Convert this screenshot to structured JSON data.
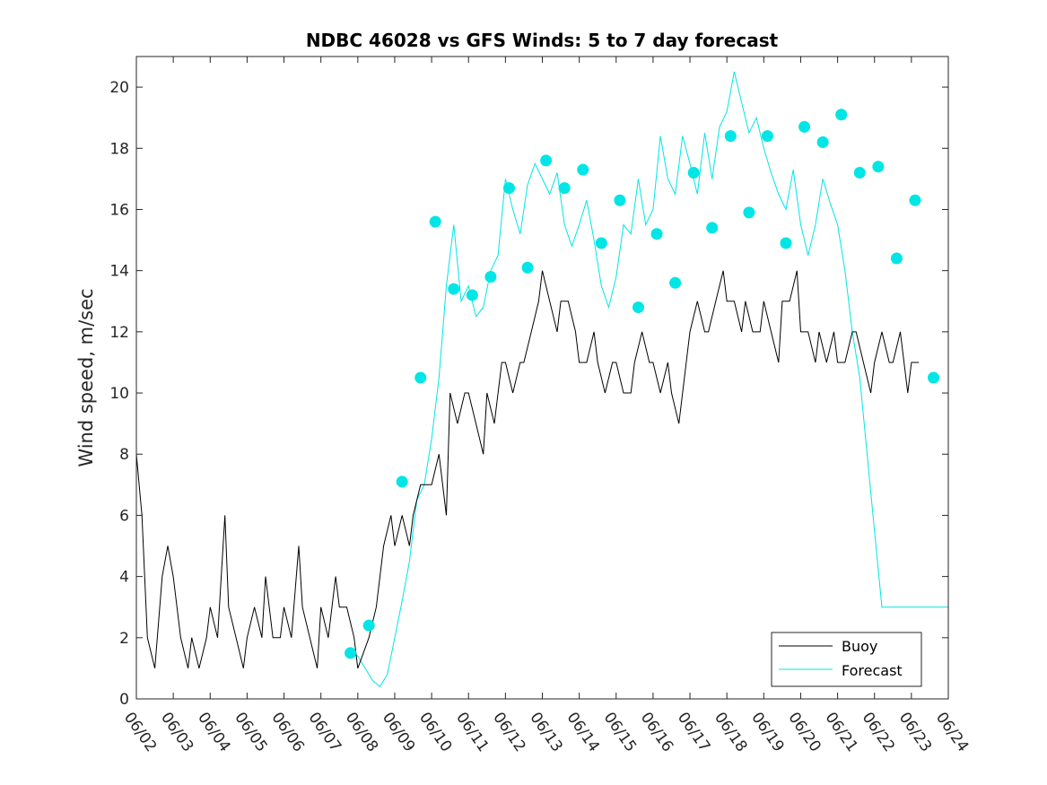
{
  "chart_data": {
    "type": "line",
    "title": "NDBC 46028 vs GFS Winds: 5 to 7 day forecast",
    "xlabel": "",
    "ylabel": "Wind speed, m/sec",
    "x_start": "06/02",
    "x_end": "06/24",
    "xlim_days": [
      0,
      22
    ],
    "ylim": [
      0,
      21
    ],
    "yticks": [
      "0",
      "2",
      "4",
      "6",
      "8",
      "10",
      "12",
      "14",
      "16",
      "18",
      "20"
    ],
    "xtick_labels": [
      "06/02",
      "06/03",
      "06/04",
      "06/05",
      "06/06",
      "06/07",
      "06/08",
      "06/09",
      "06/10",
      "06/11",
      "06/12",
      "06/13",
      "06/14",
      "06/15",
      "06/16",
      "06/17",
      "06/18",
      "06/19",
      "06/20",
      "06/21",
      "06/22",
      "06/23",
      "06/24"
    ],
    "grid": false,
    "legend_position": "bottom-right",
    "colors": {
      "buoy": "#000000",
      "forecast": "#00e5e5",
      "axes": "#262626"
    },
    "legend": [
      {
        "label": "Buoy",
        "color": "#000000"
      },
      {
        "label": "Forecast",
        "color": "#00e5e5"
      }
    ],
    "series": [
      {
        "name": "Buoy",
        "x": [
          0.0,
          0.15,
          0.3,
          0.5,
          0.7,
          0.85,
          1.0,
          1.2,
          1.4,
          1.5,
          1.7,
          1.9,
          2.0,
          2.2,
          2.4,
          2.5,
          2.7,
          2.9,
          3.0,
          3.2,
          3.4,
          3.5,
          3.7,
          3.9,
          4.0,
          4.2,
          4.4,
          4.5,
          4.7,
          4.9,
          5.0,
          5.2,
          5.4,
          5.5,
          5.7,
          5.9,
          6.0,
          6.3,
          6.5,
          6.7,
          6.9,
          7.0,
          7.2,
          7.4,
          7.5,
          7.7,
          7.9,
          8.0,
          8.2,
          8.4,
          8.5,
          8.7,
          8.9,
          9.0,
          9.2,
          9.4,
          9.5,
          9.7,
          9.9,
          10.0,
          10.2,
          10.4,
          10.5,
          10.7,
          10.9,
          11.0,
          11.2,
          11.4,
          11.5,
          11.7,
          11.9,
          12.0,
          12.2,
          12.4,
          12.5,
          12.7,
          12.9,
          13.0,
          13.2,
          13.4,
          13.5,
          13.7,
          13.9,
          14.0,
          14.2,
          14.4,
          14.5,
          14.7,
          14.9,
          15.0,
          15.2,
          15.4,
          15.5,
          15.7,
          15.9,
          16.0,
          16.2,
          16.4,
          16.5,
          16.7,
          16.9,
          17.0,
          17.2,
          17.4,
          17.5,
          17.7,
          17.9,
          18.0,
          18.2,
          18.4,
          18.5,
          18.7,
          18.9,
          19.0,
          19.2,
          19.4,
          19.5,
          19.7,
          19.9,
          20.0,
          20.2,
          20.4,
          20.5,
          20.7,
          20.9,
          21.0,
          21.1,
          21.2
        ],
        "y": [
          8,
          6,
          2,
          1,
          4,
          5,
          4,
          2,
          1,
          2,
          1,
          2,
          3,
          2,
          6,
          3,
          2,
          1,
          2,
          3,
          2,
          4,
          2,
          2,
          3,
          2,
          5,
          3,
          2,
          1,
          3,
          2,
          4,
          3,
          3,
          2,
          1,
          2,
          3,
          5,
          6,
          5,
          6,
          5,
          6,
          7,
          7,
          7,
          8,
          6,
          10,
          9,
          10,
          10,
          9,
          8,
          10,
          9,
          11,
          11,
          10,
          11,
          11,
          12,
          13,
          14,
          13,
          12,
          13,
          13,
          12,
          11,
          11,
          12,
          11,
          10,
          11,
          11,
          10,
          10,
          11,
          12,
          11,
          11,
          10,
          11,
          10,
          9,
          11,
          12,
          13,
          12,
          12,
          13,
          14,
          13,
          13,
          12,
          13,
          12,
          12,
          13,
          12,
          11,
          13,
          13,
          14,
          12,
          12,
          11,
          12,
          11,
          12,
          11,
          11,
          12,
          12,
          11,
          10,
          11,
          12,
          11,
          11,
          12,
          10,
          11,
          11,
          11
        ]
      },
      {
        "name": "Forecast",
        "x": [
          5.8,
          6.0,
          6.2,
          6.4,
          6.6,
          6.8,
          7.0,
          7.2,
          7.4,
          7.6,
          7.8,
          8.0,
          8.2,
          8.4,
          8.6,
          8.8,
          9.0,
          9.2,
          9.4,
          9.6,
          9.8,
          10.0,
          10.2,
          10.4,
          10.6,
          10.8,
          11.0,
          11.2,
          11.4,
          11.6,
          11.8,
          12.0,
          12.2,
          12.4,
          12.6,
          12.8,
          13.0,
          13.2,
          13.4,
          13.6,
          13.8,
          14.0,
          14.2,
          14.4,
          14.6,
          14.8,
          15.0,
          15.2,
          15.4,
          15.6,
          15.8,
          16.0,
          16.2,
          16.4,
          16.6,
          16.8,
          17.0,
          17.2,
          17.4,
          17.6,
          17.8,
          18.0,
          18.2,
          18.4,
          18.6,
          18.8,
          19.0,
          19.2,
          19.4,
          19.6,
          19.8,
          20.0,
          20.2,
          20.4,
          20.6,
          20.8,
          21.0,
          21.2,
          21.4,
          21.6,
          21.8,
          22.0
        ],
        "y": [
          1.5,
          1.4,
          1.0,
          0.6,
          0.4,
          0.8,
          2.0,
          3.2,
          4.5,
          6.5,
          7.0,
          8.5,
          10.5,
          13.5,
          15.5,
          13.0,
          13.5,
          12.5,
          12.8,
          14.0,
          14.5,
          17.0,
          16.0,
          15.2,
          16.8,
          17.5,
          17.0,
          16.5,
          17.2,
          15.5,
          14.8,
          15.5,
          16.3,
          15.0,
          13.5,
          12.8,
          13.8,
          15.5,
          15.2,
          17.0,
          15.5,
          16.0,
          18.4,
          17.0,
          16.5,
          18.4,
          17.5,
          16.5,
          18.5,
          17.0,
          18.7,
          19.2,
          20.5,
          19.5,
          18.5,
          19.0,
          18.0,
          17.2,
          16.5,
          16.0,
          17.3,
          15.5,
          14.5,
          15.5,
          17.0,
          16.2,
          15.5,
          14.0,
          12.0,
          10.5,
          8.0,
          5.5,
          3.0,
          3.0,
          3.0,
          3.0,
          3.0,
          3.0,
          3.0,
          3.0,
          3.0,
          3.0
        ]
      }
    ],
    "forecast_markers": {
      "x": [
        5.8,
        6.3,
        7.2,
        7.7,
        8.1,
        8.6,
        9.1,
        9.6,
        10.1,
        10.6,
        11.1,
        11.6,
        12.1,
        12.6,
        13.1,
        13.6,
        14.1,
        14.6,
        15.1,
        15.6,
        16.1,
        16.6,
        17.1,
        17.6,
        18.1,
        18.6,
        19.1,
        19.6,
        20.1,
        20.6,
        21.1,
        21.6
      ],
      "y": [
        1.5,
        2.4,
        7.1,
        10.5,
        15.6,
        13.4,
        13.2,
        13.8,
        16.7,
        14.1,
        17.6,
        16.7,
        17.3,
        14.9,
        16.3,
        12.8,
        15.2,
        13.6,
        17.2,
        15.4,
        18.4,
        15.9,
        18.4,
        14.9,
        18.7,
        18.2,
        19.1,
        17.2,
        17.4,
        14.4,
        16.3,
        10.5
      ]
    }
  }
}
